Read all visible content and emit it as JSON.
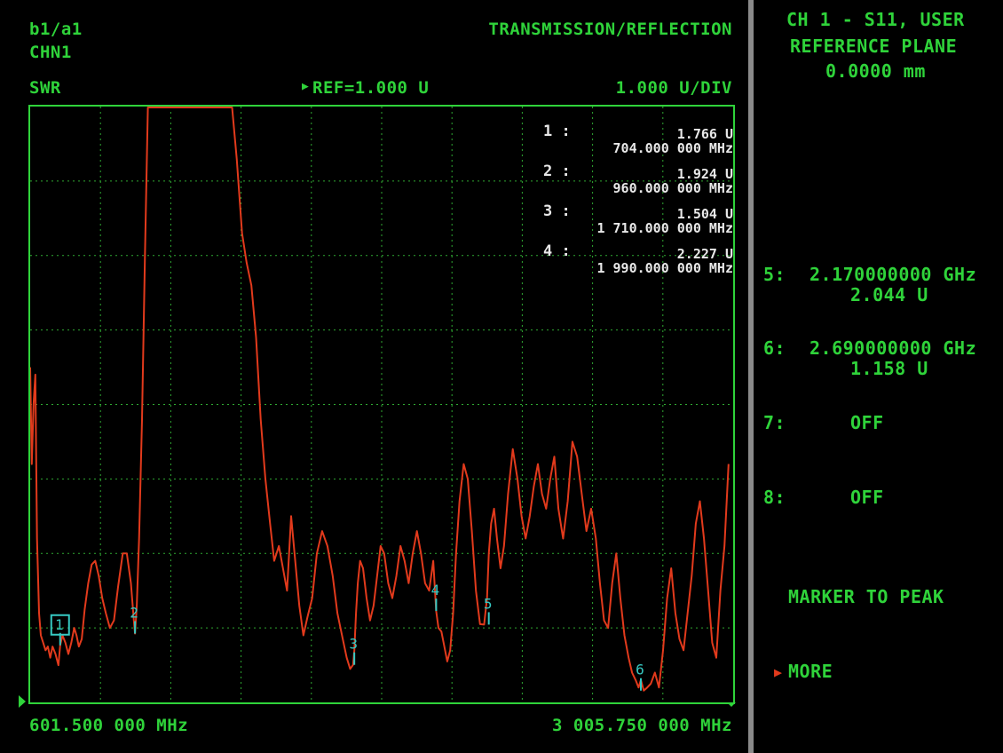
{
  "header": {
    "measurement": "b1/a1",
    "channel": "CHN1",
    "format": "SWR",
    "mode": "TRANSMISSION/REFLECTION",
    "reference": "REF=1.000 U",
    "scale": "1.000 U/DIV"
  },
  "footer": {
    "start_freq": "601.500 000 MHz",
    "stop_freq": "3 005.750 000 MHz"
  },
  "marker_table": [
    {
      "num": "1 :",
      "value": "1.766 U",
      "freq": "704.000 000 MHz"
    },
    {
      "num": "2 :",
      "value": "1.924 U",
      "freq": "960.000 000 MHz"
    },
    {
      "num": "3 :",
      "value": "1.504 U",
      "freq": "1 710.000 000 MHz"
    },
    {
      "num": "4 :",
      "value": "2.227 U",
      "freq": "1 990.000 000 MHz"
    }
  ],
  "trace_markers": [
    {
      "label": "1",
      "freq_mhz": 704,
      "swr": 1.766,
      "active": true
    },
    {
      "label": "2",
      "freq_mhz": 960,
      "swr": 1.924,
      "active": false
    },
    {
      "label": "3",
      "freq_mhz": 1710,
      "swr": 1.504,
      "active": false
    },
    {
      "label": "4",
      "freq_mhz": 1990,
      "swr": 2.227,
      "active": false
    },
    {
      "label": "5",
      "freq_mhz": 2170,
      "swr": 2.044,
      "active": false
    },
    {
      "label": "6",
      "freq_mhz": 2690,
      "swr": 1.158,
      "active": false
    }
  ],
  "softkeys": {
    "title_line1": "CH 1 - S11, USER",
    "title_line2": "REFERENCE PLANE",
    "title_line3": "0.0000 mm",
    "m5_label": "5:",
    "m5_freq": "2.170000000 GHz",
    "m5_value": "2.044 U",
    "m6_label": "6:",
    "m6_freq": "2.690000000 GHz",
    "m6_value": "1.158 U",
    "m7_label": "7:",
    "m7_value": "OFF",
    "m8_label": "8:",
    "m8_value": "OFF",
    "marker_to_peak": "MARKER TO PEAK",
    "more": "MORE"
  },
  "trace": {
    "freq_mhz": [
      601.5,
      607,
      613,
      619,
      625,
      632,
      638,
      646,
      654,
      662,
      670,
      678,
      688,
      698,
      704,
      712,
      722,
      732,
      742,
      752,
      760,
      768,
      778,
      788,
      800,
      812,
      824,
      836,
      848,
      860,
      874,
      888,
      902,
      918,
      932,
      946,
      956,
      960,
      966,
      974,
      984,
      994,
      1004,
      1014,
      1024,
      1034,
      1046,
      1060,
      1074,
      1090,
      1106,
      1122,
      1138,
      1152,
      1168,
      1184,
      1200,
      1214,
      1226,
      1238,
      1250,
      1262,
      1276,
      1292,
      1308,
      1326,
      1342,
      1358,
      1374,
      1390,
      1406,
      1422,
      1436,
      1452,
      1466,
      1480,
      1494,
      1508,
      1522,
      1536,
      1550,
      1566,
      1582,
      1600,
      1618,
      1636,
      1652,
      1668,
      1684,
      1696,
      1706,
      1710,
      1716,
      1722,
      1730,
      1740,
      1752,
      1764,
      1776,
      1788,
      1800,
      1812,
      1826,
      1840,
      1854,
      1868,
      1882,
      1896,
      1910,
      1924,
      1938,
      1952,
      1966,
      1980,
      1990,
      1998,
      2008,
      2018,
      2028,
      2038,
      2048,
      2058,
      2070,
      2084,
      2098,
      2112,
      2126,
      2140,
      2154,
      2164,
      2170,
      2178,
      2188,
      2198,
      2210,
      2222,
      2236,
      2252,
      2268,
      2282,
      2296,
      2310,
      2324,
      2338,
      2352,
      2366,
      2380,
      2394,
      2408,
      2424,
      2440,
      2456,
      2472,
      2488,
      2504,
      2520,
      2536,
      2550,
      2564,
      2578,
      2592,
      2606,
      2620,
      2634,
      2648,
      2660,
      2672,
      2682,
      2690,
      2700,
      2712,
      2724,
      2738,
      2752,
      2766,
      2780,
      2794,
      2808,
      2822,
      2836,
      2850,
      2864,
      2878,
      2892,
      2906,
      2920,
      2934,
      2948,
      2962,
      2976,
      2990,
      3005.75
    ],
    "swr": [
      5.5,
      4.2,
      5.0,
      5.4,
      3.2,
      2.2,
      1.9,
      1.8,
      1.7,
      1.75,
      1.6,
      1.75,
      1.65,
      1.5,
      1.766,
      1.9,
      1.8,
      1.65,
      1.8,
      2.0,
      1.9,
      1.75,
      1.85,
      2.25,
      2.6,
      2.85,
      2.9,
      2.7,
      2.4,
      2.2,
      2.0,
      2.1,
      2.55,
      3.0,
      3.0,
      2.6,
      2.1,
      1.924,
      2.3,
      3.2,
      4.8,
      7.0,
      9.0,
      10.9,
      10.9,
      10.9,
      10.9,
      10.9,
      10.9,
      10.9,
      10.9,
      10.9,
      10.9,
      10.9,
      10.9,
      10.9,
      10.9,
      10.7,
      10.4,
      10.55,
      10.9,
      10.9,
      10.5,
      9.5,
      8.3,
      7.3,
      6.9,
      6.6,
      5.9,
      4.8,
      4.0,
      3.4,
      2.9,
      3.1,
      2.8,
      2.5,
      3.5,
      2.9,
      2.3,
      1.9,
      2.15,
      2.4,
      3.0,
      3.3,
      3.1,
      2.7,
      2.2,
      1.9,
      1.6,
      1.45,
      1.504,
      1.7,
      2.2,
      2.6,
      2.9,
      2.8,
      2.4,
      2.1,
      2.3,
      2.7,
      3.1,
      3.0,
      2.6,
      2.4,
      2.7,
      3.1,
      2.9,
      2.6,
      3.0,
      3.3,
      3.0,
      2.6,
      2.5,
      2.9,
      2.227,
      2.0,
      1.95,
      1.75,
      1.55,
      1.7,
      2.2,
      3.0,
      3.7,
      4.2,
      4.0,
      3.3,
      2.5,
      2.05,
      2.044,
      2.4,
      3.0,
      3.4,
      3.6,
      3.2,
      2.8,
      3.1,
      3.8,
      4.4,
      4.0,
      3.5,
      3.2,
      3.5,
      3.9,
      4.2,
      3.8,
      3.6,
      4.0,
      4.3,
      3.6,
      3.2,
      3.7,
      4.5,
      4.3,
      3.8,
      3.3,
      3.6,
      3.2,
      2.6,
      2.1,
      2.0,
      2.6,
      3.0,
      2.4,
      1.9,
      1.6,
      1.4,
      1.3,
      1.2,
      1.3,
      1.158,
      1.2,
      1.25,
      1.4,
      1.2,
      1.7,
      2.4,
      2.8,
      2.2,
      1.85,
      1.7,
      2.2,
      2.7,
      3.4,
      3.7,
      3.2,
      2.5,
      1.8,
      1.6,
      2.5,
      3.1,
      4.2
    ]
  }
}
